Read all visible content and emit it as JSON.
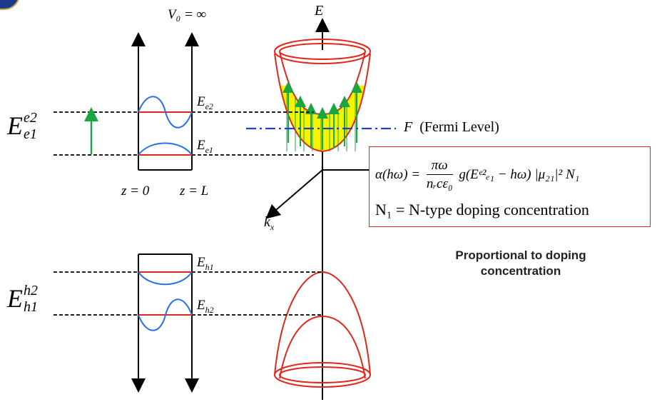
{
  "diagram": {
    "v0_label": "V₀ = ∞",
    "energy_axis": "E",
    "kx_label": "k",
    "kx_sub": "x",
    "fermi_symbol": "F",
    "fermi_text": "(Fermi Level)",
    "z0_label": "z = 0",
    "zL_label": "z = L",
    "levels": {
      "e2": {
        "base": "E",
        "sub": "e2"
      },
      "e1": {
        "base": "E",
        "sub": "e1"
      },
      "h1": {
        "base": "E",
        "sub": "h1"
      },
      "h2": {
        "base": "E",
        "sub": "h2"
      }
    },
    "transition_e": {
      "base": "E",
      "sup": "e2",
      "sub": "e1"
    },
    "transition_h": {
      "base": "E",
      "sup": "h2",
      "sub": "h1"
    }
  },
  "formula": {
    "lhs": "α(hω) =",
    "num": "πω",
    "den": "nᵣcε₀",
    "rhs": "g(Eᵉ²ₑ₁ − hω) |μ₂₁|² N₁",
    "doping": "N₁ =  N-type doping concentration"
  },
  "note": "Proportional to doping concentration",
  "colors": {
    "band": "#e1261c",
    "wave": "#2a6fe8",
    "arrow": "#1aa640",
    "fill": "#f8f400",
    "fermi": "#1f3fd1"
  }
}
